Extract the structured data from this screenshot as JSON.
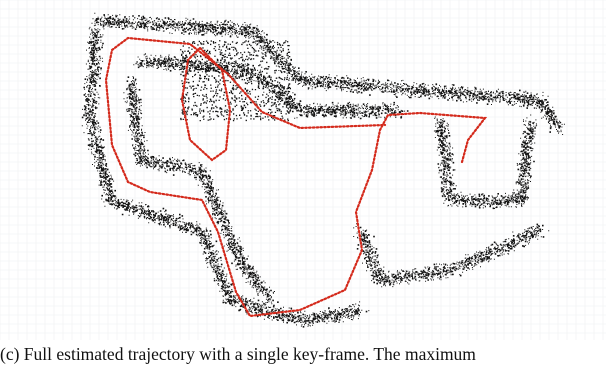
{
  "caption": "(c) Full estimated trajectory with a single key-frame. The maximum"
}
